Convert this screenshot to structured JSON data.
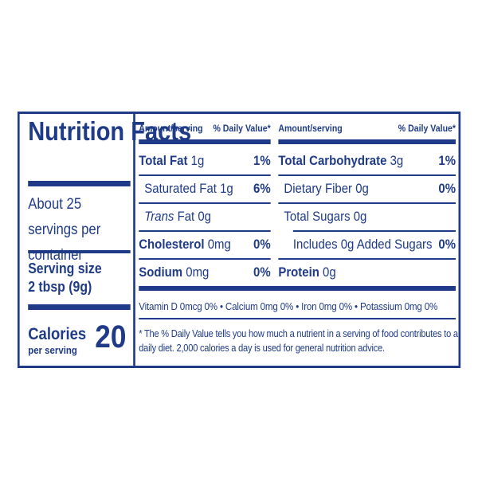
{
  "title": "Nutrition Facts",
  "servings": "About 25 servings per container",
  "serving_size": {
    "label": "Serving size",
    "value": "2 tbsp (9g)"
  },
  "calories": {
    "label": "Calories",
    "sublabel": "per serving",
    "value": "20"
  },
  "columns": [
    {
      "header": {
        "amount": "Amount/serving",
        "dv": "% Daily Value*"
      },
      "rows": [
        {
          "name": "Total Fat",
          "amount": "1g",
          "dv": "1%"
        },
        {
          "name": "Saturated Fat",
          "amount": "1g",
          "dv": "6%"
        },
        {
          "name": "Trans",
          "amount": "Fat 0g"
        },
        {
          "name": "Cholesterol",
          "amount": "0mg",
          "dv": "0%"
        },
        {
          "name": "Sodium",
          "amount": "0mg",
          "dv": "0%"
        }
      ]
    },
    {
      "header": {
        "amount": "Amount/serving",
        "dv": "% Daily Value*"
      },
      "rows": [
        {
          "name": "Total Carbohydrate",
          "amount": "3g",
          "dv": "1%"
        },
        {
          "name": "Dietary Fiber",
          "amount": "0g",
          "dv": "0%"
        },
        {
          "name": "Total Sugars",
          "amount": "0g"
        },
        {
          "name": "Includes 0g Added Sugars",
          "dv": "0%"
        },
        {
          "name": "Protein",
          "amount": "0g"
        }
      ]
    }
  ],
  "vitamins": "Vitamin D 0mcg 0% • Calcium 0mg 0% • Iron 0mg 0% • Potassium 0mg 0%",
  "footnote": "* The % Daily Value tells you how much a nutrient in a serving of food contributes to a daily diet. 2,000 calories a day is used for general nutrition advice."
}
